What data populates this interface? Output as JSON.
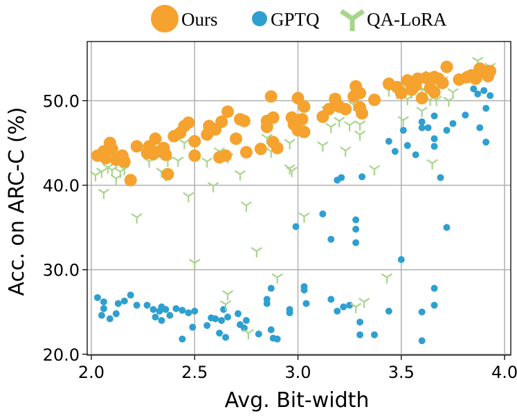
{
  "chart_data": {
    "type": "scatter",
    "title": "",
    "xlabel": "Avg. Bit-width",
    "ylabel": "Acc. on ARC-C (%)",
    "xlim": [
      1.98,
      4.03
    ],
    "ylim": [
      19.9,
      57.0
    ],
    "xticks": [
      2.0,
      2.5,
      3.0,
      3.5,
      4.0
    ],
    "xtick_labels": [
      "2.0",
      "2.5",
      "3.0",
      "3.5",
      "4.0"
    ],
    "yticks": [
      20.0,
      30.0,
      40.0,
      50.0
    ],
    "ytick_labels": [
      "20.0",
      "30.0",
      "40.0",
      "50.0"
    ],
    "grid": true,
    "legend_position": "top, above plot",
    "colors": {
      "Ours": "#f5a22e",
      "GPTQ": "#2f9fd0",
      "QA-LoRA": "#a8d48c"
    },
    "series": [
      {
        "name": "Ours",
        "marker": "circle-large",
        "points": [
          [
            2.03,
            43.5
          ],
          [
            2.06,
            44.0
          ],
          [
            2.07,
            43.2
          ],
          [
            2.09,
            45.0
          ],
          [
            2.1,
            44.3
          ],
          [
            2.12,
            43.0
          ],
          [
            2.15,
            43.5
          ],
          [
            2.16,
            42.8
          ],
          [
            2.19,
            40.6
          ],
          [
            2.22,
            44.6
          ],
          [
            2.27,
            43.8
          ],
          [
            2.28,
            44.6
          ],
          [
            2.3,
            43.7
          ],
          [
            2.31,
            45.5
          ],
          [
            2.33,
            44.0
          ],
          [
            2.35,
            44.4
          ],
          [
            2.36,
            43.6
          ],
          [
            2.37,
            41.3
          ],
          [
            2.4,
            45.8
          ],
          [
            2.43,
            46.2
          ],
          [
            2.45,
            47.0
          ],
          [
            2.47,
            47.4
          ],
          [
            2.5,
            45.2
          ],
          [
            2.5,
            43.5
          ],
          [
            2.56,
            46.0
          ],
          [
            2.57,
            47.0
          ],
          [
            2.6,
            46.6
          ],
          [
            2.62,
            43.3
          ],
          [
            2.63,
            47.5
          ],
          [
            2.65,
            43.5
          ],
          [
            2.66,
            48.7
          ],
          [
            2.7,
            45.5
          ],
          [
            2.72,
            47.8
          ],
          [
            2.74,
            47.6
          ],
          [
            2.75,
            43.9
          ],
          [
            2.82,
            44.3
          ],
          [
            2.85,
            47.6
          ],
          [
            2.85,
            46.9
          ],
          [
            2.87,
            50.5
          ],
          [
            2.88,
            48.0
          ],
          [
            2.88,
            45.1
          ],
          [
            2.9,
            44.4
          ],
          [
            2.97,
            48.0
          ],
          [
            2.98,
            47.2
          ],
          [
            3.0,
            50.3
          ],
          [
            3.0,
            46.5
          ],
          [
            3.02,
            47.8
          ],
          [
            3.03,
            49.3
          ],
          [
            3.03,
            46.3
          ],
          [
            3.12,
            48.1
          ],
          [
            3.15,
            49.0
          ],
          [
            3.18,
            50.2
          ],
          [
            3.2,
            49.3
          ],
          [
            3.23,
            49.0
          ],
          [
            3.27,
            50.5
          ],
          [
            3.28,
            51.7
          ],
          [
            3.3,
            50.9
          ],
          [
            3.3,
            49.2
          ],
          [
            3.31,
            48.5
          ],
          [
            3.37,
            50.1
          ],
          [
            3.44,
            52.0
          ],
          [
            3.48,
            51.6
          ],
          [
            3.5,
            50.9
          ],
          [
            3.53,
            52.4
          ],
          [
            3.55,
            51.3
          ],
          [
            3.57,
            51.8
          ],
          [
            3.58,
            52.6
          ],
          [
            3.6,
            50.3
          ],
          [
            3.62,
            52.7
          ],
          [
            3.64,
            51.5
          ],
          [
            3.66,
            51.0
          ],
          [
            3.66,
            52.8
          ],
          [
            3.68,
            52.6
          ],
          [
            3.7,
            52.1
          ],
          [
            3.72,
            54.0
          ],
          [
            3.78,
            52.5
          ],
          [
            3.82,
            52.8
          ],
          [
            3.84,
            53.0
          ],
          [
            3.86,
            52.6
          ],
          [
            3.88,
            53.8
          ],
          [
            3.9,
            53.5
          ],
          [
            3.92,
            52.9
          ],
          [
            3.93,
            53.5
          ]
        ]
      },
      {
        "name": "GPTQ",
        "marker": "circle-small",
        "points": [
          [
            2.03,
            26.7
          ],
          [
            2.05,
            24.6
          ],
          [
            2.06,
            26.2
          ],
          [
            2.06,
            25.4
          ],
          [
            2.09,
            24.2
          ],
          [
            2.12,
            24.8
          ],
          [
            2.13,
            26.0
          ],
          [
            2.16,
            26.3
          ],
          [
            2.19,
            27.0
          ],
          [
            2.22,
            25.8
          ],
          [
            2.27,
            25.8
          ],
          [
            2.3,
            25.3
          ],
          [
            2.31,
            24.4
          ],
          [
            2.33,
            25.1
          ],
          [
            2.34,
            25.6
          ],
          [
            2.34,
            24.0
          ],
          [
            2.36,
            25.3
          ],
          [
            2.38,
            24.6
          ],
          [
            2.41,
            25.4
          ],
          [
            2.44,
            21.8
          ],
          [
            2.44,
            25.2
          ],
          [
            2.47,
            24.9
          ],
          [
            2.49,
            23.2
          ],
          [
            2.5,
            25.1
          ],
          [
            2.56,
            23.4
          ],
          [
            2.58,
            24.3
          ],
          [
            2.6,
            24.2
          ],
          [
            2.62,
            22.5
          ],
          [
            2.63,
            24.0
          ],
          [
            2.64,
            25.3
          ],
          [
            2.65,
            22.0
          ],
          [
            2.66,
            24.4
          ],
          [
            2.71,
            24.8
          ],
          [
            2.72,
            23.5
          ],
          [
            2.74,
            23.1
          ],
          [
            2.75,
            24.0
          ],
          [
            2.81,
            22.4
          ],
          [
            2.85,
            26.5
          ],
          [
            2.85,
            26.0
          ],
          [
            2.87,
            27.8
          ],
          [
            2.87,
            22.9
          ],
          [
            2.88,
            21.9
          ],
          [
            2.9,
            21.8
          ],
          [
            2.96,
            25.3
          ],
          [
            2.96,
            24.9
          ],
          [
            2.99,
            35.1
          ],
          [
            3.03,
            28.0
          ],
          [
            3.03,
            27.6
          ],
          [
            3.04,
            26.0
          ],
          [
            3.12,
            36.6
          ],
          [
            3.16,
            33.6
          ],
          [
            3.16,
            26.5
          ],
          [
            3.19,
            25.1
          ],
          [
            3.19,
            40.6
          ],
          [
            3.21,
            40.9
          ],
          [
            3.22,
            25.6
          ],
          [
            3.25,
            25.8
          ],
          [
            3.28,
            35.9
          ],
          [
            3.28,
            34.8
          ],
          [
            3.28,
            33.2
          ],
          [
            3.3,
            22.3
          ],
          [
            3.3,
            23.8
          ],
          [
            3.31,
            41.0
          ],
          [
            3.37,
            22.3
          ],
          [
            3.44,
            45.2
          ],
          [
            3.44,
            25.1
          ],
          [
            3.47,
            44.0
          ],
          [
            3.5,
            31.2
          ],
          [
            3.51,
            46.5
          ],
          [
            3.53,
            44.7
          ],
          [
            3.57,
            43.6
          ],
          [
            3.6,
            47.5
          ],
          [
            3.6,
            46.8
          ],
          [
            3.6,
            25.0
          ],
          [
            3.6,
            21.6
          ],
          [
            3.63,
            46.8
          ],
          [
            3.66,
            48.2
          ],
          [
            3.66,
            45.5
          ],
          [
            3.66,
            44.6
          ],
          [
            3.66,
            27.8
          ],
          [
            3.66,
            25.8
          ],
          [
            3.69,
            40.9
          ],
          [
            3.72,
            35.0
          ],
          [
            3.72,
            46.5
          ],
          [
            3.75,
            47.3
          ],
          [
            3.81,
            48.3
          ],
          [
            3.85,
            51.4
          ],
          [
            3.87,
            50.8
          ],
          [
            3.88,
            46.8
          ],
          [
            3.9,
            51.2
          ],
          [
            3.91,
            49.1
          ],
          [
            3.91,
            45.1
          ],
          [
            3.93,
            50.6
          ]
        ]
      },
      {
        "name": "QA-LoRA",
        "marker": "tri-down",
        "points": [
          [
            2.02,
            41.2
          ],
          [
            2.05,
            41.6
          ],
          [
            2.06,
            39.1
          ],
          [
            2.08,
            42.1
          ],
          [
            2.1,
            41.8
          ],
          [
            2.12,
            40.8
          ],
          [
            2.14,
            41.6
          ],
          [
            2.16,
            41.9
          ],
          [
            2.22,
            36.2
          ],
          [
            2.28,
            42.8
          ],
          [
            2.3,
            43.6
          ],
          [
            2.31,
            43.7
          ],
          [
            2.34,
            41.6
          ],
          [
            2.36,
            41.2
          ],
          [
            2.37,
            42.9
          ],
          [
            2.42,
            42.9
          ],
          [
            2.45,
            45.0
          ],
          [
            2.47,
            38.7
          ],
          [
            2.5,
            30.8
          ],
          [
            2.56,
            42.8
          ],
          [
            2.59,
            39.9
          ],
          [
            2.62,
            44.0
          ],
          [
            2.65,
            25.9
          ],
          [
            2.66,
            43.3
          ],
          [
            2.66,
            27.1
          ],
          [
            2.75,
            37.6
          ],
          [
            2.72,
            41.3
          ],
          [
            2.76,
            22.5
          ],
          [
            2.8,
            32.2
          ],
          [
            2.85,
            45.6
          ],
          [
            2.87,
            44.0
          ],
          [
            2.9,
            29.1
          ],
          [
            2.96,
            45.0
          ],
          [
            2.96,
            42.0
          ],
          [
            2.97,
            41.7
          ],
          [
            3.03,
            36.3
          ],
          [
            3.12,
            44.7
          ],
          [
            3.14,
            48.9
          ],
          [
            3.16,
            46.9
          ],
          [
            3.18,
            50.3
          ],
          [
            3.2,
            47.6
          ],
          [
            3.23,
            44.1
          ],
          [
            3.25,
            47.1
          ],
          [
            3.27,
            50.3
          ],
          [
            3.27,
            49.5
          ],
          [
            3.28,
            25.6
          ],
          [
            3.3,
            47.2
          ],
          [
            3.3,
            46.0
          ],
          [
            3.32,
            26.2
          ],
          [
            3.37,
            41.9
          ],
          [
            3.43,
            29.1
          ],
          [
            3.44,
            51.2
          ],
          [
            3.48,
            50.9
          ],
          [
            3.5,
            51.4
          ],
          [
            3.51,
            47.7
          ],
          [
            3.53,
            50.2
          ],
          [
            3.55,
            51.0
          ],
          [
            3.6,
            51.3
          ],
          [
            3.6,
            48.8
          ],
          [
            3.62,
            51.1
          ],
          [
            3.64,
            53.1
          ],
          [
            3.64,
            50.1
          ],
          [
            3.65,
            42.6
          ],
          [
            3.66,
            51.5
          ],
          [
            3.67,
            50.1
          ],
          [
            3.7,
            52.4
          ],
          [
            3.73,
            50.0
          ],
          [
            3.75,
            51.0
          ],
          [
            3.81,
            52.7
          ],
          [
            3.86,
            53.1
          ],
          [
            3.87,
            54.7
          ],
          [
            3.88,
            53.6
          ],
          [
            3.89,
            53.3
          ],
          [
            3.9,
            53.8
          ],
          [
            3.92,
            53.4
          ],
          [
            3.93,
            54.0
          ]
        ]
      }
    ]
  }
}
